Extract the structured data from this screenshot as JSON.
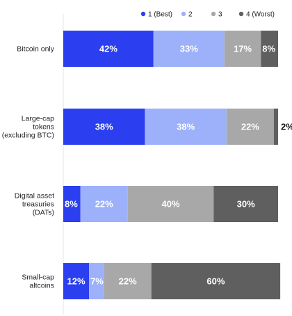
{
  "chart_data": {
    "type": "bar",
    "orientation": "horizontal",
    "stacked": true,
    "categories": [
      [
        "Bitcoin only"
      ],
      [
        "Large-cap",
        "tokens",
        "(excluding BTC)"
      ],
      [
        "Digital asset",
        "treasuries",
        "(DATs)"
      ],
      [
        "Small-cap",
        "altcoins"
      ]
    ],
    "series": [
      {
        "name": "1 (Best)",
        "color": "#2b3ff0",
        "label_color": "#ffffff",
        "values": [
          42,
          38,
          8,
          12
        ]
      },
      {
        "name": "2",
        "color": "#9db1fb",
        "label_color": "#ffffff",
        "values": [
          33,
          38,
          22,
          7
        ]
      },
      {
        "name": "3",
        "color": "#a8a8a8",
        "label_color": "#ffffff",
        "values": [
          17,
          22,
          40,
          22
        ]
      },
      {
        "name": "4 (Worst)",
        "color": "#5f5f5f",
        "label_color": "#ffffff",
        "values": [
          8,
          2,
          30,
          60
        ]
      }
    ],
    "value_suffix": "%",
    "xlim": [
      0,
      100
    ],
    "legend": "top",
    "grid": false
  }
}
